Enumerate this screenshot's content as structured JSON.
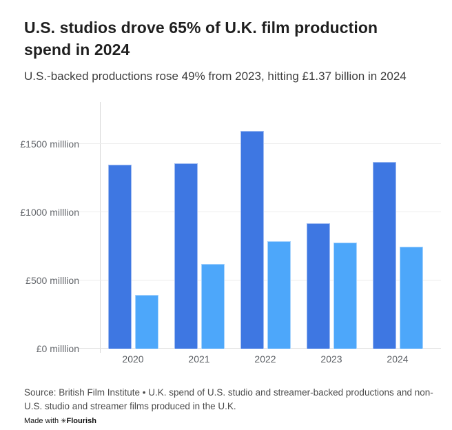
{
  "header": {
    "title": "U.S. studios drove 65% of U.K. film production spend in 2024",
    "subtitle": "U.S.-backed productions rose 49% from 2023, hitting £1.37 billion in 2024"
  },
  "chart_data": {
    "type": "bar",
    "title": "U.S. studios drove 65% of U.K. film production spend in 2024",
    "subtitle": "U.S.-backed productions rose 49% from 2023, hitting £1.37 billion in 2024",
    "categories": [
      "2020",
      "2021",
      "2022",
      "2023",
      "2024"
    ],
    "series": [
      {
        "name": "U.S. studio and streamer-backed productions",
        "color": "#3E77E2",
        "values": [
          1350,
          1360,
          1600,
          920,
          1370
        ]
      },
      {
        "name": "Non-U.S. studio and streamer films",
        "color": "#4DA7FA",
        "values": [
          395,
          620,
          790,
          780,
          750
        ]
      }
    ],
    "unit": "£ million",
    "xlabel": "",
    "ylabel": "",
    "ylim": [
      0,
      1810
    ],
    "y_ticks": [
      {
        "value": 0,
        "label": "£0 milllion"
      },
      {
        "value": 500,
        "label": "£500 milllion"
      },
      {
        "value": 1000,
        "label": "£1000 milllion"
      },
      {
        "value": 1500,
        "label": "£1500 milllion"
      }
    ],
    "grid": true,
    "legend_position": "none"
  },
  "footer": {
    "source": "Source: British Film Institute • U.K. spend of U.S. studio and streamer-backed productions and non-U.S. studio and streamer films produced in the U.K.",
    "made_with": "Made with",
    "brand_icon": "✳",
    "brand": "Flourish"
  },
  "colors": {
    "bar_dark": "#3E77E2",
    "bar_light": "#4DA7FA",
    "gridline": "#ececec",
    "axis_line": "#d8d8d8",
    "tick_text": "#63666b"
  }
}
